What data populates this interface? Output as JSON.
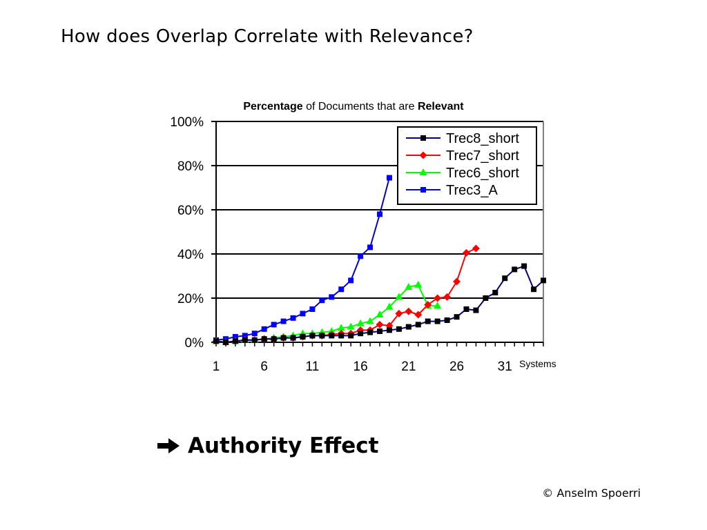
{
  "slide": {
    "title": "How does Overlap Correlate with Relevance?",
    "conclusion": "Authority Effect",
    "credit": "© Anselm Spoerri"
  },
  "icons": {
    "conclusion_arrow": "arrow-right-icon"
  },
  "chart_data": {
    "type": "line",
    "title_parts": [
      {
        "text": "Percentage",
        "bold": true
      },
      {
        "text": " of Documents that are ",
        "bold": false
      },
      {
        "text": "Relevant",
        "bold": true
      }
    ],
    "xlabel": "Systems",
    "ylabel": "",
    "xlim": [
      1,
      35
    ],
    "ylim": [
      0,
      100
    ],
    "y_unit": "%",
    "x_tick_labels": [
      "1",
      "6",
      "11",
      "16",
      "21",
      "26",
      "31"
    ],
    "x_tick_values": [
      1,
      6,
      11,
      16,
      21,
      26,
      31
    ],
    "y_tick_labels": [
      "0%",
      "20%",
      "40%",
      "60%",
      "80%",
      "100%"
    ],
    "y_tick_values": [
      0,
      20,
      40,
      60,
      80,
      100
    ],
    "grid": "horizontal",
    "legend_position": "top-right",
    "series": [
      {
        "name": "Trec8_short",
        "color": "#000080",
        "marker": "square",
        "marker_color": "#000000",
        "x": [
          1,
          2,
          3,
          4,
          5,
          6,
          7,
          8,
          9,
          10,
          11,
          12,
          13,
          14,
          15,
          16,
          17,
          18,
          19,
          20,
          21,
          22,
          23,
          24,
          25,
          26,
          27,
          28,
          29,
          30,
          31,
          32,
          33,
          34,
          35
        ],
        "y": [
          0.5,
          0,
          0.5,
          1,
          1,
          1.5,
          1.5,
          2,
          2,
          2.5,
          3,
          3,
          3,
          3,
          3,
          4,
          4.5,
          5,
          5.5,
          6,
          7,
          8,
          9.5,
          9.5,
          10,
          11.5,
          15,
          14.5,
          20,
          22.5,
          29,
          33,
          34.5,
          24,
          28
        ]
      },
      {
        "name": "Trec7_short",
        "color": "#ff0000",
        "marker": "diamond",
        "marker_color": "#ff0000",
        "x": [
          1,
          2,
          3,
          4,
          5,
          6,
          7,
          8,
          9,
          10,
          11,
          12,
          13,
          14,
          15,
          16,
          17,
          18,
          19,
          20,
          21,
          22,
          23,
          24,
          25,
          26,
          27,
          28
        ],
        "y": [
          0.5,
          0,
          0.5,
          1,
          1,
          1.5,
          1.5,
          2,
          2,
          2.5,
          3,
          3,
          3.5,
          4,
          4,
          5.5,
          5.5,
          8,
          7.5,
          13,
          14,
          12.5,
          17,
          20,
          20.5,
          27.5,
          40.5,
          42.5
        ]
      },
      {
        "name": "Trec6_short",
        "color": "#00ff00",
        "marker": "triangle",
        "marker_color": "#00ff00",
        "x": [
          1,
          2,
          3,
          4,
          5,
          6,
          7,
          8,
          9,
          10,
          11,
          12,
          13,
          14,
          15,
          16,
          17,
          18,
          19,
          20,
          21,
          22,
          23,
          24
        ],
        "y": [
          0.5,
          0,
          0.5,
          1,
          1,
          1.5,
          2,
          2.5,
          3,
          4,
          4,
          4.5,
          5,
          6.5,
          7,
          8.5,
          9.5,
          12.5,
          16,
          20.5,
          25,
          26,
          16.5,
          16.5
        ]
      },
      {
        "name": "Trec3_A",
        "color": "#0000cc",
        "marker": "square",
        "marker_color": "#0000ff",
        "x": [
          1,
          2,
          3,
          4,
          5,
          6,
          7,
          8,
          9,
          10,
          11,
          12,
          13,
          14,
          15,
          16,
          17,
          18,
          19
        ],
        "y": [
          1,
          1.5,
          2.5,
          3,
          4,
          6,
          8,
          9.5,
          11,
          13,
          15,
          19,
          20.5,
          24,
          28,
          39,
          43,
          58,
          74.5
        ]
      }
    ]
  }
}
